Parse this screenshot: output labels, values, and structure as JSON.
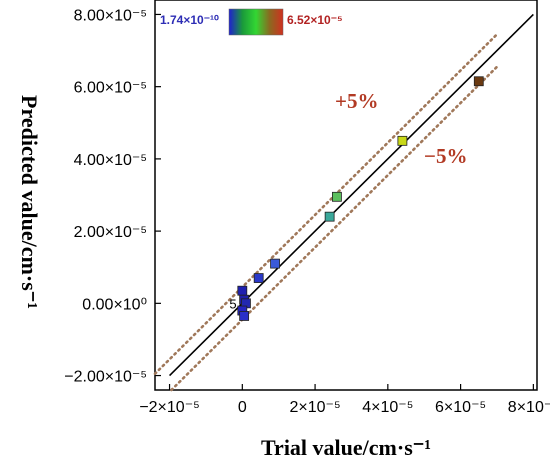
{
  "chart_data": {
    "type": "scatter",
    "xlabel": "Trial value/cm·s⁻¹",
    "ylabel": "Predicted value/cm·s⁻¹",
    "xlim": [
      -2.4e-05,
      8.1e-05
    ],
    "ylim": [
      -2.4e-05,
      8.4e-05
    ],
    "x_ticks": [
      -2e-05,
      0,
      2e-05,
      4e-05,
      6e-05,
      8e-05
    ],
    "x_tick_labels": [
      "−2×10⁻⁵",
      "0",
      "2×10⁻⁵",
      "4×10⁻⁵",
      "6×10⁻⁵",
      "8×10⁻⁵"
    ],
    "y_ticks": [
      -2e-05,
      0,
      2e-05,
      4e-05,
      6e-05,
      8e-05
    ],
    "y_tick_labels": [
      "−2.00×10⁻⁵",
      "0.00×10⁰",
      "2.00×10⁻⁵",
      "4.00×10⁻⁵",
      "6.00×10⁻⁵",
      "8.00×10⁻⁵"
    ],
    "reference_line": {
      "from": [
        -2e-05,
        -2e-05
      ],
      "to": [
        8e-05,
        8e-05
      ],
      "color": "#000000"
    },
    "band_lines": {
      "offset": 4.5e-06,
      "color": "#a0785a",
      "upper_label": "+5%",
      "lower_label": "−5%",
      "label_color": "#b23a24"
    },
    "colorbar": {
      "min_label": "1.74×10⁻¹⁰",
      "max_label": "6.52×10⁻⁵",
      "min_color": "#2d2db5",
      "max_color": "#b22222",
      "stops": [
        "#2020d0",
        "#1a9a3a",
        "#33d633",
        "#8a6a20",
        "#d03020"
      ]
    },
    "point_label": "5",
    "points": [
      {
        "x": 6.5e-05,
        "y": 6.15e-05,
        "color": "#6b3a12"
      },
      {
        "x": 4.4e-05,
        "y": 4.5e-05,
        "color": "#c8d818"
      },
      {
        "x": 2.6e-05,
        "y": 2.95e-05,
        "color": "#5cbf5c"
      },
      {
        "x": 2.4e-05,
        "y": 2.4e-05,
        "color": "#3aa89a"
      },
      {
        "x": 9e-06,
        "y": 1.1e-05,
        "color": "#3a5ad8"
      },
      {
        "x": 4.5e-06,
        "y": 7e-06,
        "color": "#2a38c8"
      },
      {
        "x": 0.0,
        "y": 3.5e-06,
        "color": "#2020b0"
      },
      {
        "x": 5e-07,
        "y": 1e-06,
        "color": "#2020a8"
      },
      {
        "x": 1e-06,
        "y": 0.0,
        "color": "#2228b0"
      },
      {
        "x": 0.0,
        "y": -2e-06,
        "color": "#2424c0"
      },
      {
        "x": 5e-07,
        "y": -3.5e-06,
        "color": "#2a30c8"
      }
    ]
  }
}
